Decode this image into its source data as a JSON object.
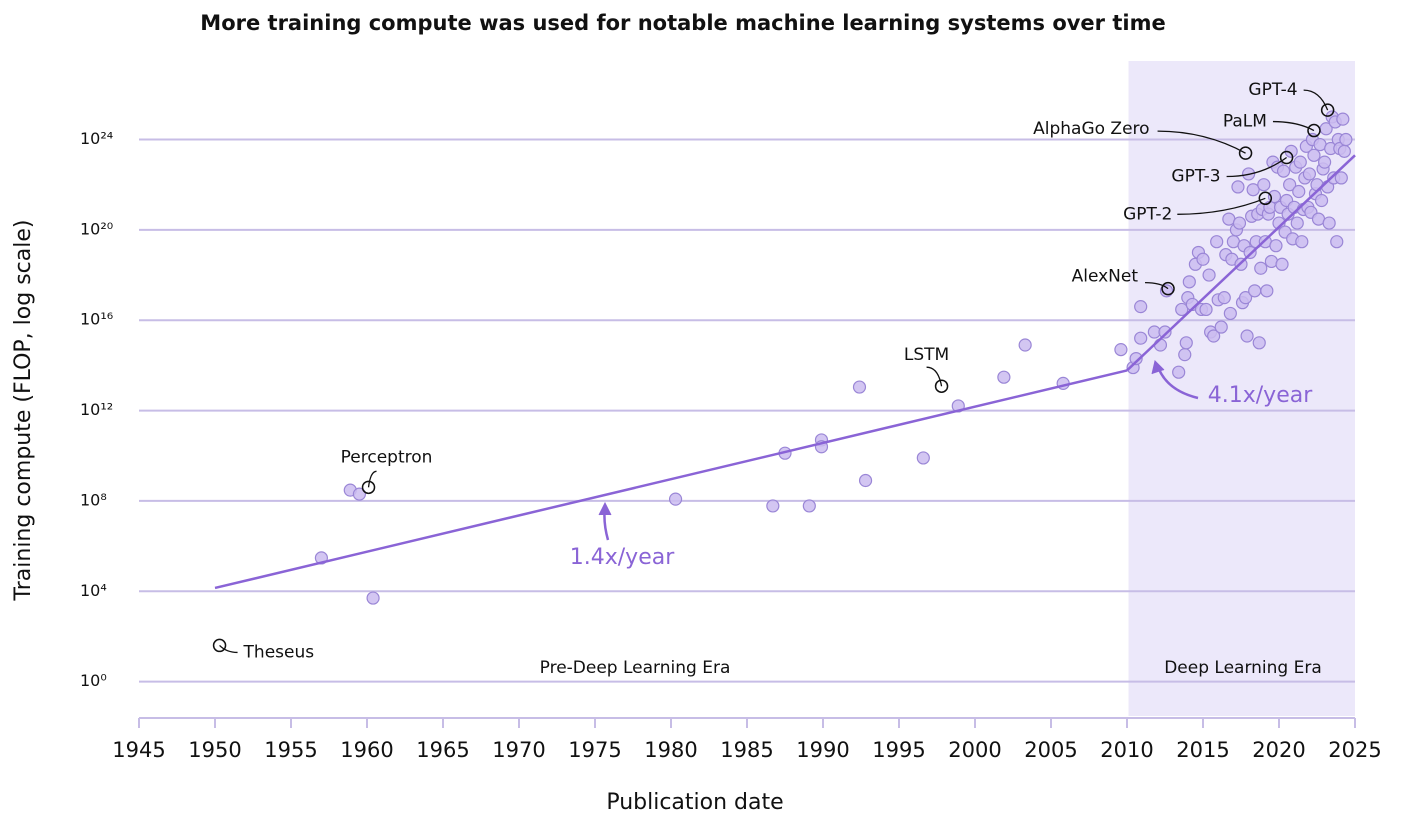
{
  "chart_data": {
    "type": "scatter",
    "title": "More training compute was used for notable machine learning systems over time",
    "x_label": "Publication date",
    "y_label": "Training compute (FLOP, log scale)",
    "log_y": true,
    "grid": true,
    "color": "#cbbcf0",
    "xlim": [
      1945,
      2025
    ],
    "xticks": [
      1945,
      1950,
      1955,
      1960,
      1965,
      1970,
      1975,
      1980,
      1985,
      1990,
      1995,
      2000,
      2005,
      2010,
      2015,
      2020,
      2025
    ],
    "ylim": [
      0.03,
      3e+27
    ],
    "yticks": [
      {
        "value": 1,
        "label": "10⁰"
      },
      {
        "value": 10000.0,
        "label": "10⁴"
      },
      {
        "value": 100000000.0,
        "label": "10⁸"
      },
      {
        "value": 1000000000000.0,
        "label": "10¹²"
      },
      {
        "value": 1e+16,
        "label": "10¹⁶"
      },
      {
        "value": 1e+20,
        "label": "10²⁰"
      },
      {
        "value": 1e+24,
        "label": "10²⁴"
      }
    ],
    "shaded_region": [
      2010.1,
      2025
    ],
    "eras": [
      {
        "text": "Pre-Deep Learning Era"
      },
      {
        "text": "Deep Learning Era"
      }
    ],
    "x": [
      1957,
      1958.9,
      1959.5,
      1960.4,
      1980.3,
      1986.7,
      1987.5,
      1989.1,
      1989.9,
      1989.9,
      1992.4,
      1992.8,
      1996.6,
      1998.9,
      2001.9,
      2003.3,
      2005.8,
      2009.6,
      2010.4,
      2010.6,
      2010.9,
      2010.9,
      2011.8,
      2012.2,
      2012.5,
      2012.6,
      2013.4,
      2013.6,
      2013.8,
      2013.9,
      2014.0,
      2014.1,
      2014.3,
      2014.5,
      2014.7,
      2014.9,
      2015.0,
      2015.2,
      2015.4,
      2015.5,
      2015.7,
      2015.9,
      2016.0,
      2016.2,
      2016.4,
      2016.5,
      2016.7,
      2016.8,
      2016.9,
      2017.0,
      2017.2,
      2017.3,
      2017.4,
      2017.5,
      2017.6,
      2017.7,
      2017.8,
      2017.9,
      2018.0,
      2018.1,
      2018.2,
      2018.3,
      2018.4,
      2018.5,
      2018.6,
      2018.7,
      2018.8,
      2018.9,
      2019.0,
      2019.1,
      2019.2,
      2019.3,
      2019.4,
      2019.5,
      2019.6,
      2019.7,
      2019.8,
      2019.9,
      2020.0,
      2020.1,
      2020.2,
      2020.3,
      2020.4,
      2020.5,
      2020.6,
      2020.7,
      2020.8,
      2020.9,
      2021.0,
      2021.1,
      2021.2,
      2021.3,
      2021.4,
      2021.5,
      2021.6,
      2021.7,
      2021.8,
      2021.9,
      2022.0,
      2022.1,
      2022.2,
      2022.3,
      2022.4,
      2022.5,
      2022.6,
      2022.7,
      2022.8,
      2022.9,
      2023.0,
      2023.1,
      2023.2,
      2023.3,
      2023.4,
      2023.5,
      2023.6,
      2023.7,
      2023.8,
      2023.9,
      2024.0,
      2024.1,
      2024.2,
      2024.3,
      2024.4
    ],
    "values": [
      300000.0,
      300000000.0,
      200000000.0,
      5000.0,
      120000000.0,
      60000000.0,
      13000000000.0,
      60000000.0,
      50000000000.0,
      25000000000.0,
      11000000000000.0,
      800000000.0,
      8000000000.0,
      1600000000000.0,
      30000000000000.0,
      800000000000000.0,
      16000000000000.0,
      500000000000000.0,
      80000000000000.0,
      200000000000000.0,
      4e+16,
      1600000000000000.0,
      3000000000000000.0,
      800000000000000.0,
      3000000000000000.0,
      2e+17,
      50000000000000.0,
      3e+16,
      300000000000000.0,
      1000000000000000.0,
      1e+17,
      5e+17,
      5e+16,
      3e+18,
      1e+19,
      3e+16,
      5e+18,
      3e+16,
      1e+18,
      3000000000000000.0,
      2000000000000000.0,
      3e+19,
      8e+16,
      5000000000000000.0,
      1e+17,
      8e+18,
      3e+20,
      2e+16,
      5e+18,
      3e+19,
      1e+20,
      8e+21,
      2e+20,
      3e+18,
      6e+16,
      2e+19,
      1e+17,
      2000000000000000.0,
      3e+22,
      1e+19,
      4e+20,
      6e+21,
      2e+17,
      3e+19,
      5e+20,
      1000000000000000.0,
      2e+18,
      8e+20,
      1e+22,
      3e+19,
      2e+17,
      5e+20,
      1e+21,
      4e+18,
      1e+23,
      3e+21,
      2e+19,
      6e+22,
      2e+20,
      1e+21,
      3e+18,
      4e+22,
      8e+19,
      2e+21,
      5e+20,
      1e+22,
      3e+23,
      4e+19,
      1e+21,
      6e+22,
      2e+20,
      5e+21,
      1e+23,
      3e+19,
      8e+20,
      2e+22,
      5e+23,
      1e+21,
      3e+22,
      6e+20,
      1e+24,
      2e+23,
      4e+21,
      1e+22,
      3e+20,
      6e+23,
      2e+21,
      5e+22,
      1e+23,
      3e+24,
      8e+21,
      2e+20,
      4e+23,
      1e+25,
      2e+22,
      6e+24,
      3e+19,
      1e+24,
      4e+23,
      2e+22,
      8e+24,
      3e+23,
      1e+24
    ],
    "annotations": [
      {
        "text": "Theseus",
        "x": 1950.3,
        "y": 40
      },
      {
        "text": "Perceptron",
        "x": 1960.1,
        "y": 400000000.0
      },
      {
        "text": "LSTM",
        "x": 1997.8,
        "y": 12000000000000.0
      },
      {
        "text": "AlexNet",
        "x": 2012.7,
        "y": 2.5e+17
      },
      {
        "text": "GPT-2",
        "x": 2019.1,
        "y": 2.5e+21
      },
      {
        "text": "GPT-3",
        "x": 2020.5,
        "y": 1.6e+23
      },
      {
        "text": "AlphaGo Zero",
        "x": 2017.8,
        "y": 2.5e+23
      },
      {
        "text": "PaLM",
        "x": 2022.3,
        "y": 2.5e+24
      },
      {
        "text": "GPT-4",
        "x": 2023.2,
        "y": 2e+25
      }
    ],
    "trend_lines": [
      {
        "label": "1.4x/year",
        "color": "#8a64d6",
        "x": [
          1950,
          2010
        ],
        "values": [
          14000.0,
          60000000000000.0
        ]
      },
      {
        "label": "4.1x/year",
        "color": "#8a64d6",
        "x": [
          2010,
          2025
        ],
        "values": [
          60000000000000.0,
          2e+23
        ]
      }
    ]
  }
}
